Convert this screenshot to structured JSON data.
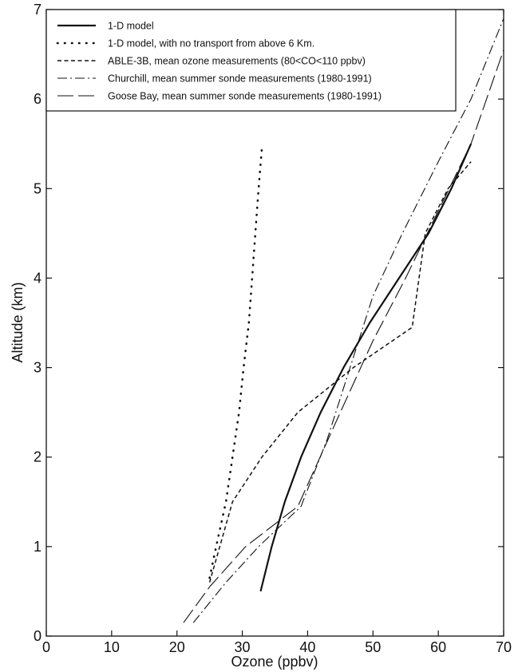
{
  "chart_data": {
    "type": "line",
    "title": "",
    "xlabel": "Ozone (ppbv)",
    "ylabel": "Altitude (km)",
    "xlim": [
      0,
      70
    ],
    "ylim": [
      0,
      7
    ],
    "x_ticks": [
      "0",
      "10",
      "20",
      "30",
      "40",
      "50",
      "60",
      "70"
    ],
    "y_ticks": [
      "0",
      "1",
      "2",
      "3",
      "4",
      "5",
      "6",
      "7"
    ],
    "grid": false,
    "legend_position": "top",
    "series": [
      {
        "name": "1-D model",
        "style": "solid",
        "points": [
          [
            32.8,
            0.5
          ],
          [
            34.5,
            1.0
          ],
          [
            36.5,
            1.5
          ],
          [
            39.0,
            2.0
          ],
          [
            42.0,
            2.5
          ],
          [
            45.5,
            3.0
          ],
          [
            49.5,
            3.5
          ],
          [
            54.0,
            4.0
          ],
          [
            58.5,
            4.5
          ],
          [
            62.0,
            5.0
          ],
          [
            65.0,
            5.5
          ]
        ]
      },
      {
        "name": "1-D model, with no transport from above 6 Km.",
        "style": "dotted",
        "points": [
          [
            25.0,
            0.65
          ],
          [
            26.0,
            1.0
          ],
          [
            27.5,
            1.5
          ],
          [
            28.5,
            2.0
          ],
          [
            29.5,
            2.5
          ],
          [
            30.2,
            3.0
          ],
          [
            31.0,
            3.5
          ],
          [
            31.5,
            4.0
          ],
          [
            32.0,
            4.5
          ],
          [
            32.5,
            5.0
          ],
          [
            33.0,
            5.45
          ]
        ]
      },
      {
        "name": "ABLE-3B, mean ozone measurements (80<CO<110 ppbv)",
        "style": "dashed",
        "points": [
          [
            25.0,
            0.6
          ],
          [
            28.5,
            1.5
          ],
          [
            33.0,
            2.0
          ],
          [
            38.5,
            2.5
          ],
          [
            47.0,
            3.0
          ],
          [
            56.0,
            3.45
          ],
          [
            58.0,
            4.5
          ],
          [
            61.5,
            5.0
          ],
          [
            65.0,
            5.3
          ]
        ]
      },
      {
        "name": "Churchill, mean summer sonde measurements (1980-1991)",
        "style": "dashdot",
        "points": [
          [
            22.5,
            0.15
          ],
          [
            27.5,
            0.6
          ],
          [
            32.5,
            1.0
          ],
          [
            39.0,
            1.45
          ],
          [
            43.0,
            2.2
          ],
          [
            46.5,
            3.0
          ],
          [
            50.0,
            3.8
          ],
          [
            54.5,
            4.5
          ],
          [
            60.0,
            5.3
          ],
          [
            65.0,
            6.0
          ],
          [
            70.0,
            6.9
          ]
        ]
      },
      {
        "name": "Goose Bay, mean summer sonde measurements (1980-1991)",
        "style": "longdash",
        "points": [
          [
            21.0,
            0.15
          ],
          [
            25.0,
            0.55
          ],
          [
            30.5,
            1.0
          ],
          [
            38.5,
            1.45
          ],
          [
            45.0,
            2.5
          ],
          [
            50.0,
            3.3
          ],
          [
            55.0,
            4.0
          ],
          [
            60.0,
            4.75
          ],
          [
            65.0,
            5.5
          ],
          [
            70.0,
            6.55
          ]
        ]
      }
    ]
  }
}
